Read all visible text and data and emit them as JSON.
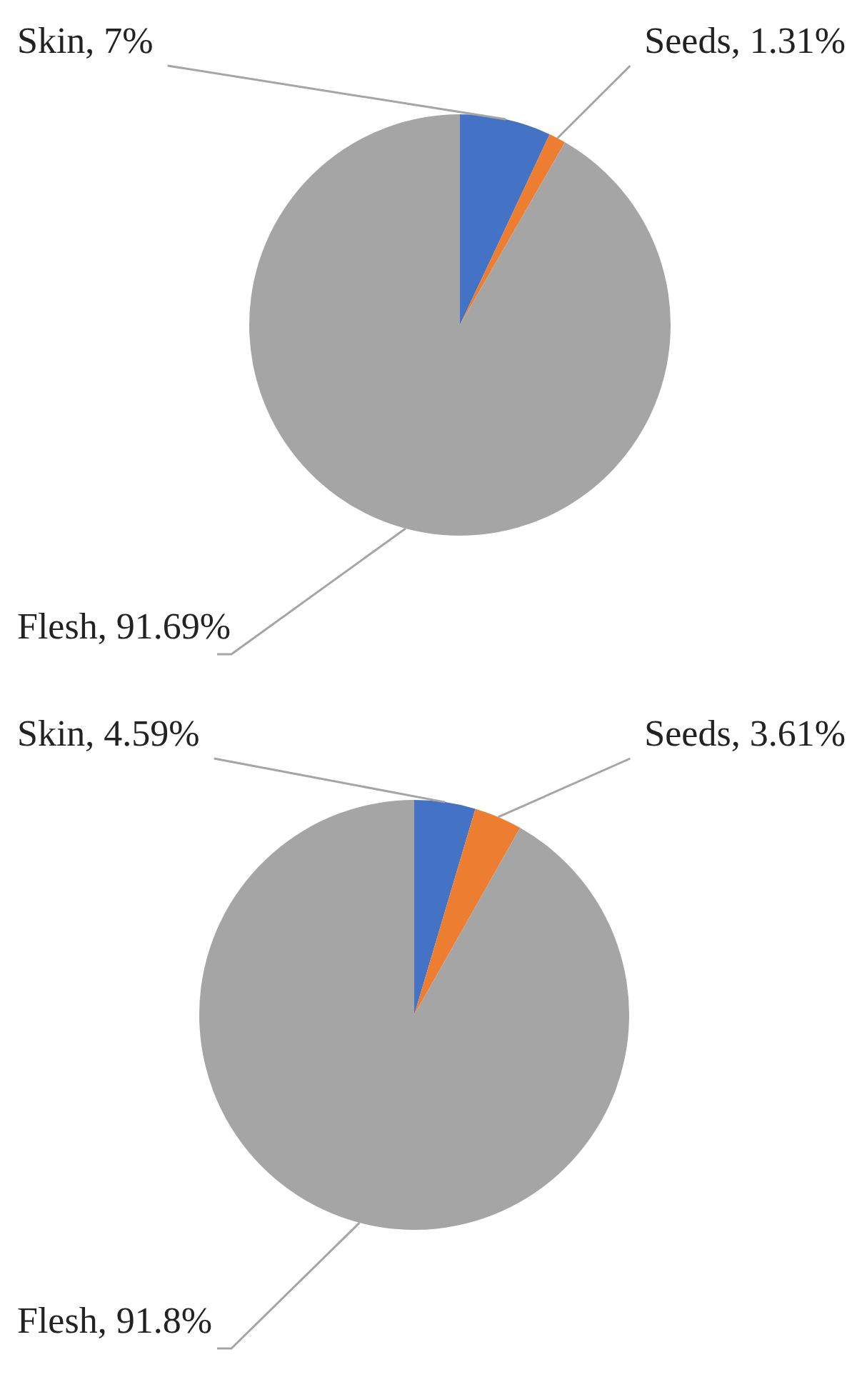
{
  "chart_data": [
    {
      "type": "pie",
      "categories": [
        "Skin",
        "Seeds",
        "Flesh"
      ],
      "values": [
        7,
        1.31,
        91.69
      ],
      "colors": [
        "#4472c4",
        "#ed7d31",
        "#a5a5a5"
      ],
      "value_labels": [
        "7%",
        "1.31%",
        "91.69%"
      ],
      "legend": false
    },
    {
      "type": "pie",
      "categories": [
        "Skin",
        "Seeds",
        "Flesh"
      ],
      "values": [
        4.59,
        3.61,
        91.8
      ],
      "colors": [
        "#4472c4",
        "#ed7d31",
        "#a5a5a5"
      ],
      "value_labels": [
        "4.59%",
        "3.61%",
        "91.8%"
      ],
      "legend": false
    }
  ]
}
